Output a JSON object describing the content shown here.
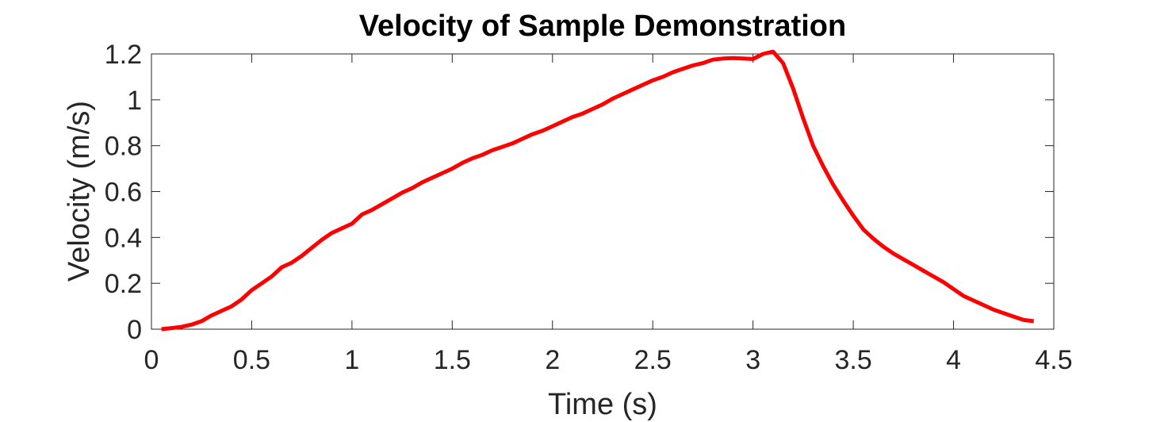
{
  "chart_data": {
    "type": "line",
    "title": "Velocity of Sample Demonstration",
    "xlabel": "Time (s)",
    "ylabel": "Velocity (m/s)",
    "xlim": [
      0,
      4.5
    ],
    "ylim": [
      0,
      1.2
    ],
    "x_ticks": [
      "0",
      "0.5",
      "1",
      "1.5",
      "2",
      "2.5",
      "3",
      "3.5",
      "4",
      "4.5"
    ],
    "y_ticks": [
      "0",
      "0.2",
      "0.4",
      "0.6",
      "0.8",
      "1",
      "1.2"
    ],
    "grid": false,
    "legend": "none",
    "series": [
      {
        "color": "#ff0000",
        "x": [
          0.05,
          0.1,
          0.15,
          0.2,
          0.25,
          0.3,
          0.35,
          0.4,
          0.45,
          0.5,
          0.55,
          0.6,
          0.65,
          0.7,
          0.75,
          0.8,
          0.85,
          0.9,
          0.95,
          1.0,
          1.05,
          1.1,
          1.15,
          1.2,
          1.25,
          1.3,
          1.35,
          1.4,
          1.45,
          1.5,
          1.55,
          1.6,
          1.65,
          1.7,
          1.75,
          1.8,
          1.85,
          1.9,
          1.95,
          2.0,
          2.05,
          2.1,
          2.15,
          2.2,
          2.25,
          2.3,
          2.35,
          2.4,
          2.45,
          2.5,
          2.55,
          2.6,
          2.65,
          2.7,
          2.75,
          2.8,
          2.85,
          2.9,
          2.95,
          3.0,
          3.05,
          3.1,
          3.15,
          3.2,
          3.25,
          3.3,
          3.35,
          3.4,
          3.45,
          3.5,
          3.55,
          3.6,
          3.65,
          3.7,
          3.75,
          3.8,
          3.85,
          3.9,
          3.95,
          4.0,
          4.05,
          4.1,
          4.15,
          4.2,
          4.25,
          4.3,
          4.35,
          4.4
        ],
        "y": [
          0.0,
          0.005,
          0.01,
          0.02,
          0.035,
          0.06,
          0.08,
          0.1,
          0.13,
          0.17,
          0.2,
          0.23,
          0.27,
          0.29,
          0.32,
          0.355,
          0.39,
          0.42,
          0.44,
          0.46,
          0.5,
          0.52,
          0.545,
          0.57,
          0.595,
          0.615,
          0.64,
          0.66,
          0.68,
          0.7,
          0.725,
          0.745,
          0.76,
          0.78,
          0.795,
          0.81,
          0.83,
          0.85,
          0.865,
          0.885,
          0.905,
          0.925,
          0.94,
          0.96,
          0.98,
          1.005,
          1.025,
          1.045,
          1.065,
          1.085,
          1.1,
          1.12,
          1.135,
          1.15,
          1.16,
          1.175,
          1.18,
          1.182,
          1.18,
          1.178,
          1.2,
          1.21,
          1.16,
          1.05,
          0.92,
          0.8,
          0.71,
          0.63,
          0.56,
          0.495,
          0.435,
          0.395,
          0.36,
          0.33,
          0.305,
          0.28,
          0.255,
          0.23,
          0.205,
          0.175,
          0.145,
          0.125,
          0.105,
          0.085,
          0.07,
          0.055,
          0.04,
          0.035
        ]
      }
    ]
  }
}
